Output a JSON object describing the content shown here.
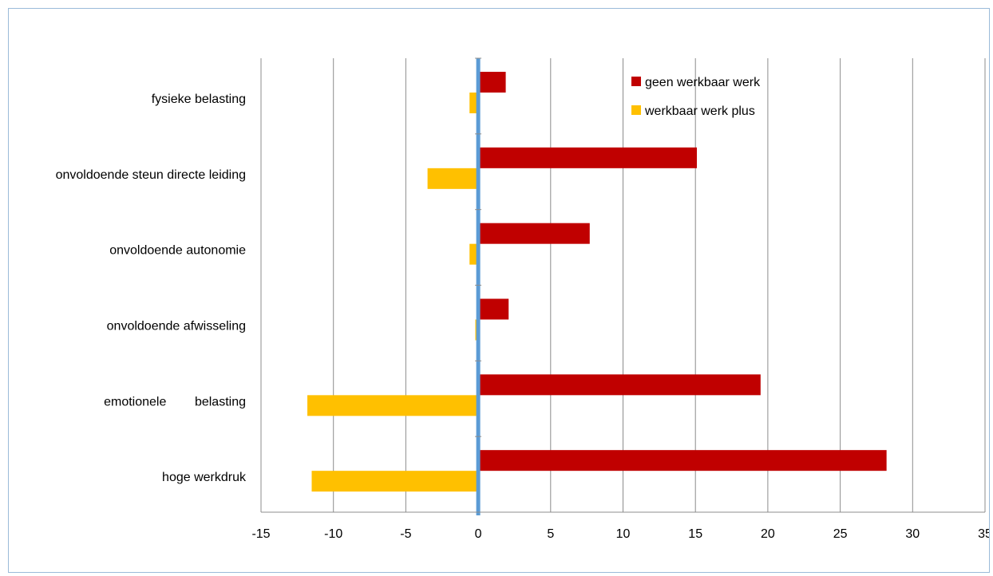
{
  "chart_data": {
    "type": "bar",
    "orientation": "horizontal",
    "title": "",
    "xlabel": "",
    "ylabel": "",
    "categories": [
      "fysieke belasting",
      "onvoldoende steun directe leiding",
      "onvoldoende autonomie",
      "onvoldoende afwisseling",
      "emotionele        belasting",
      "hoge werkdruk"
    ],
    "series": [
      {
        "name": "geen werkbaar werk",
        "color": "#c00000",
        "values": [
          1.9,
          15.1,
          7.7,
          2.1,
          19.5,
          28.2
        ]
      },
      {
        "name": "werkbaar werk plus",
        "color": "#ffc000",
        "values": [
          -0.6,
          -3.5,
          -0.6,
          -0.2,
          -11.8,
          -11.5
        ]
      }
    ],
    "xlim": [
      -15,
      35
    ],
    "xticks": [
      -15,
      -10,
      -5,
      0,
      5,
      10,
      15,
      20,
      25,
      30,
      35
    ],
    "grid": true,
    "legend_position": "top-right",
    "zero_line_color": "#5b9bd5"
  }
}
